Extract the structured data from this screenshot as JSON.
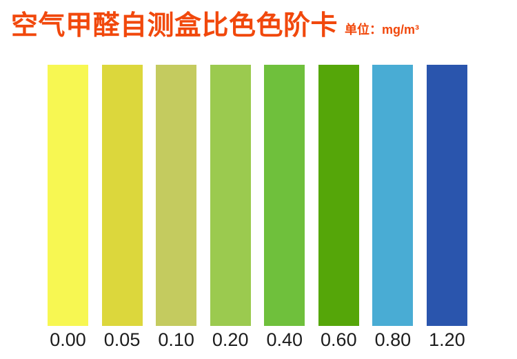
{
  "page": {
    "title": "空气甲醛自测盒比色色阶卡",
    "unit_label": "单位：mg/m³",
    "colors": {
      "title": "#F1480C",
      "label": "#1C1C1C",
      "background": "#FFFFFF"
    }
  },
  "chart_data": {
    "type": "bar",
    "title": "空气甲醛自测盒比色色阶卡",
    "subtitle": "单位：mg/m³",
    "unit": "mg/m³",
    "categories": [
      "0.00",
      "0.05",
      "0.10",
      "0.20",
      "0.40",
      "0.60",
      "0.80",
      "1.20"
    ],
    "values": [
      0.0,
      0.05,
      0.1,
      0.2,
      0.4,
      0.6,
      0.8,
      1.2
    ],
    "bar_colors": [
      "#F7F752",
      "#DCD73C",
      "#C4CB5F",
      "#9BCA4F",
      "#6FC03C",
      "#55A609",
      "#49ACD4",
      "#2A55AD"
    ],
    "xlabel": "",
    "ylabel": "",
    "legend": false,
    "grid": false,
    "layout": "8 equal-height color swatches in a row, value labels beneath each swatch"
  }
}
